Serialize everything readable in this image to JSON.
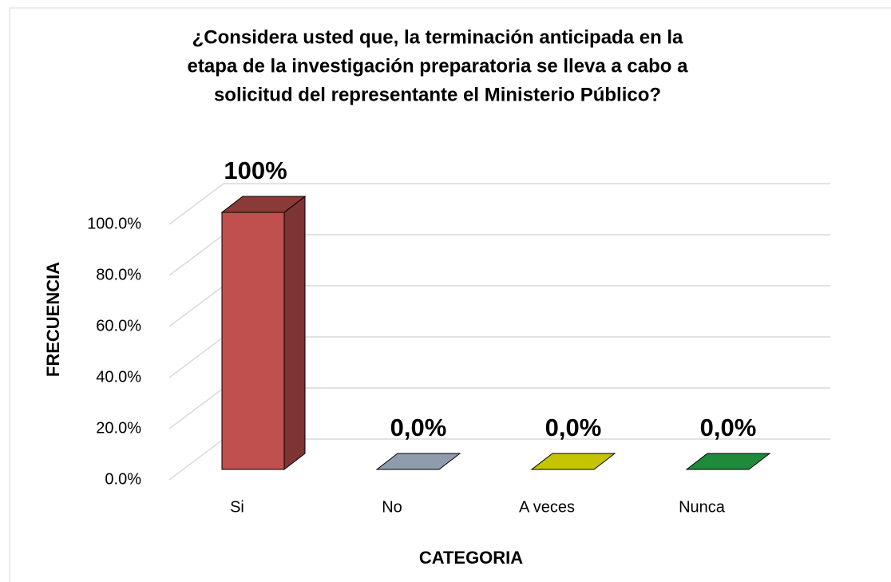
{
  "chart_data": {
    "type": "bar3d",
    "title": [
      "¿Considera usted que, la terminación anticipada en la",
      "etapa de la investigación preparatoria se lleva a cabo a",
      "solicitud del representante el Ministerio Público?"
    ],
    "x_label": "CATEGORIA",
    "y_label": "FRECUENCIA",
    "categories": [
      "Si",
      "No",
      "A veces",
      "Nunca"
    ],
    "values": [
      100,
      0,
      0,
      0
    ],
    "value_labels": [
      "100%",
      "0,0%",
      "0,0%",
      "0,0%"
    ],
    "colors": [
      "#c0504d",
      "#8e9cae",
      "#c4c400",
      "#1e8a3a"
    ],
    "ylim": [
      0,
      100
    ],
    "yticks": [
      {
        "value": 0,
        "label": "0.0%"
      },
      {
        "value": 20,
        "label": "20.0%"
      },
      {
        "value": 40,
        "label": "40.0%"
      },
      {
        "value": 60,
        "label": "60.0%"
      },
      {
        "value": 80,
        "label": "80.0%"
      },
      {
        "value": 100,
        "label": "100.0%"
      }
    ],
    "grid": true
  }
}
